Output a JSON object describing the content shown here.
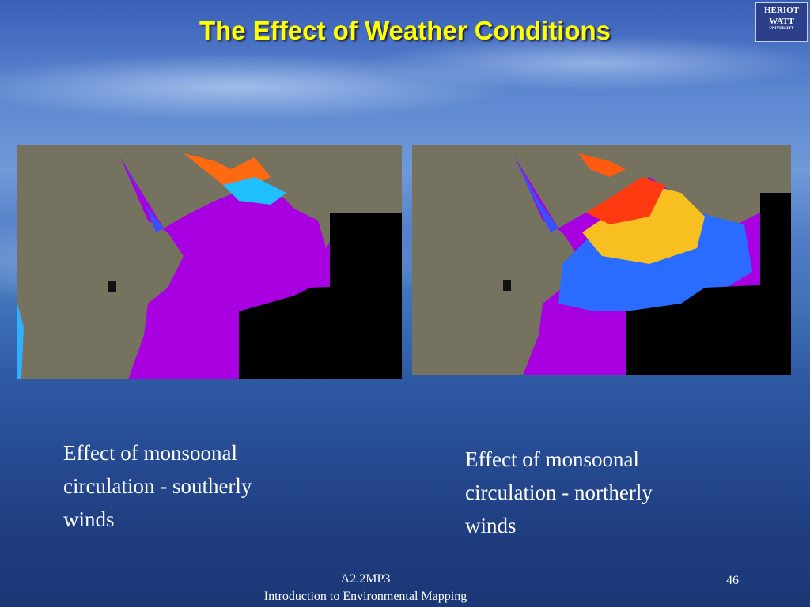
{
  "header": {
    "title": "The Effect of Weather Conditions",
    "logo": [
      "HERIOT",
      "WATT",
      "UNIVERSITY"
    ]
  },
  "panels": [
    {
      "caption": [
        "Effect of monsoonal",
        "circulation - southerly",
        "winds"
      ]
    },
    {
      "caption": [
        "Effect of monsoonal",
        "circulation - northerly",
        "winds"
      ]
    }
  ],
  "footer": {
    "lines": [
      "A2.2MP3",
      "Introduction to Environmental Mapping"
    ],
    "page": "46"
  }
}
